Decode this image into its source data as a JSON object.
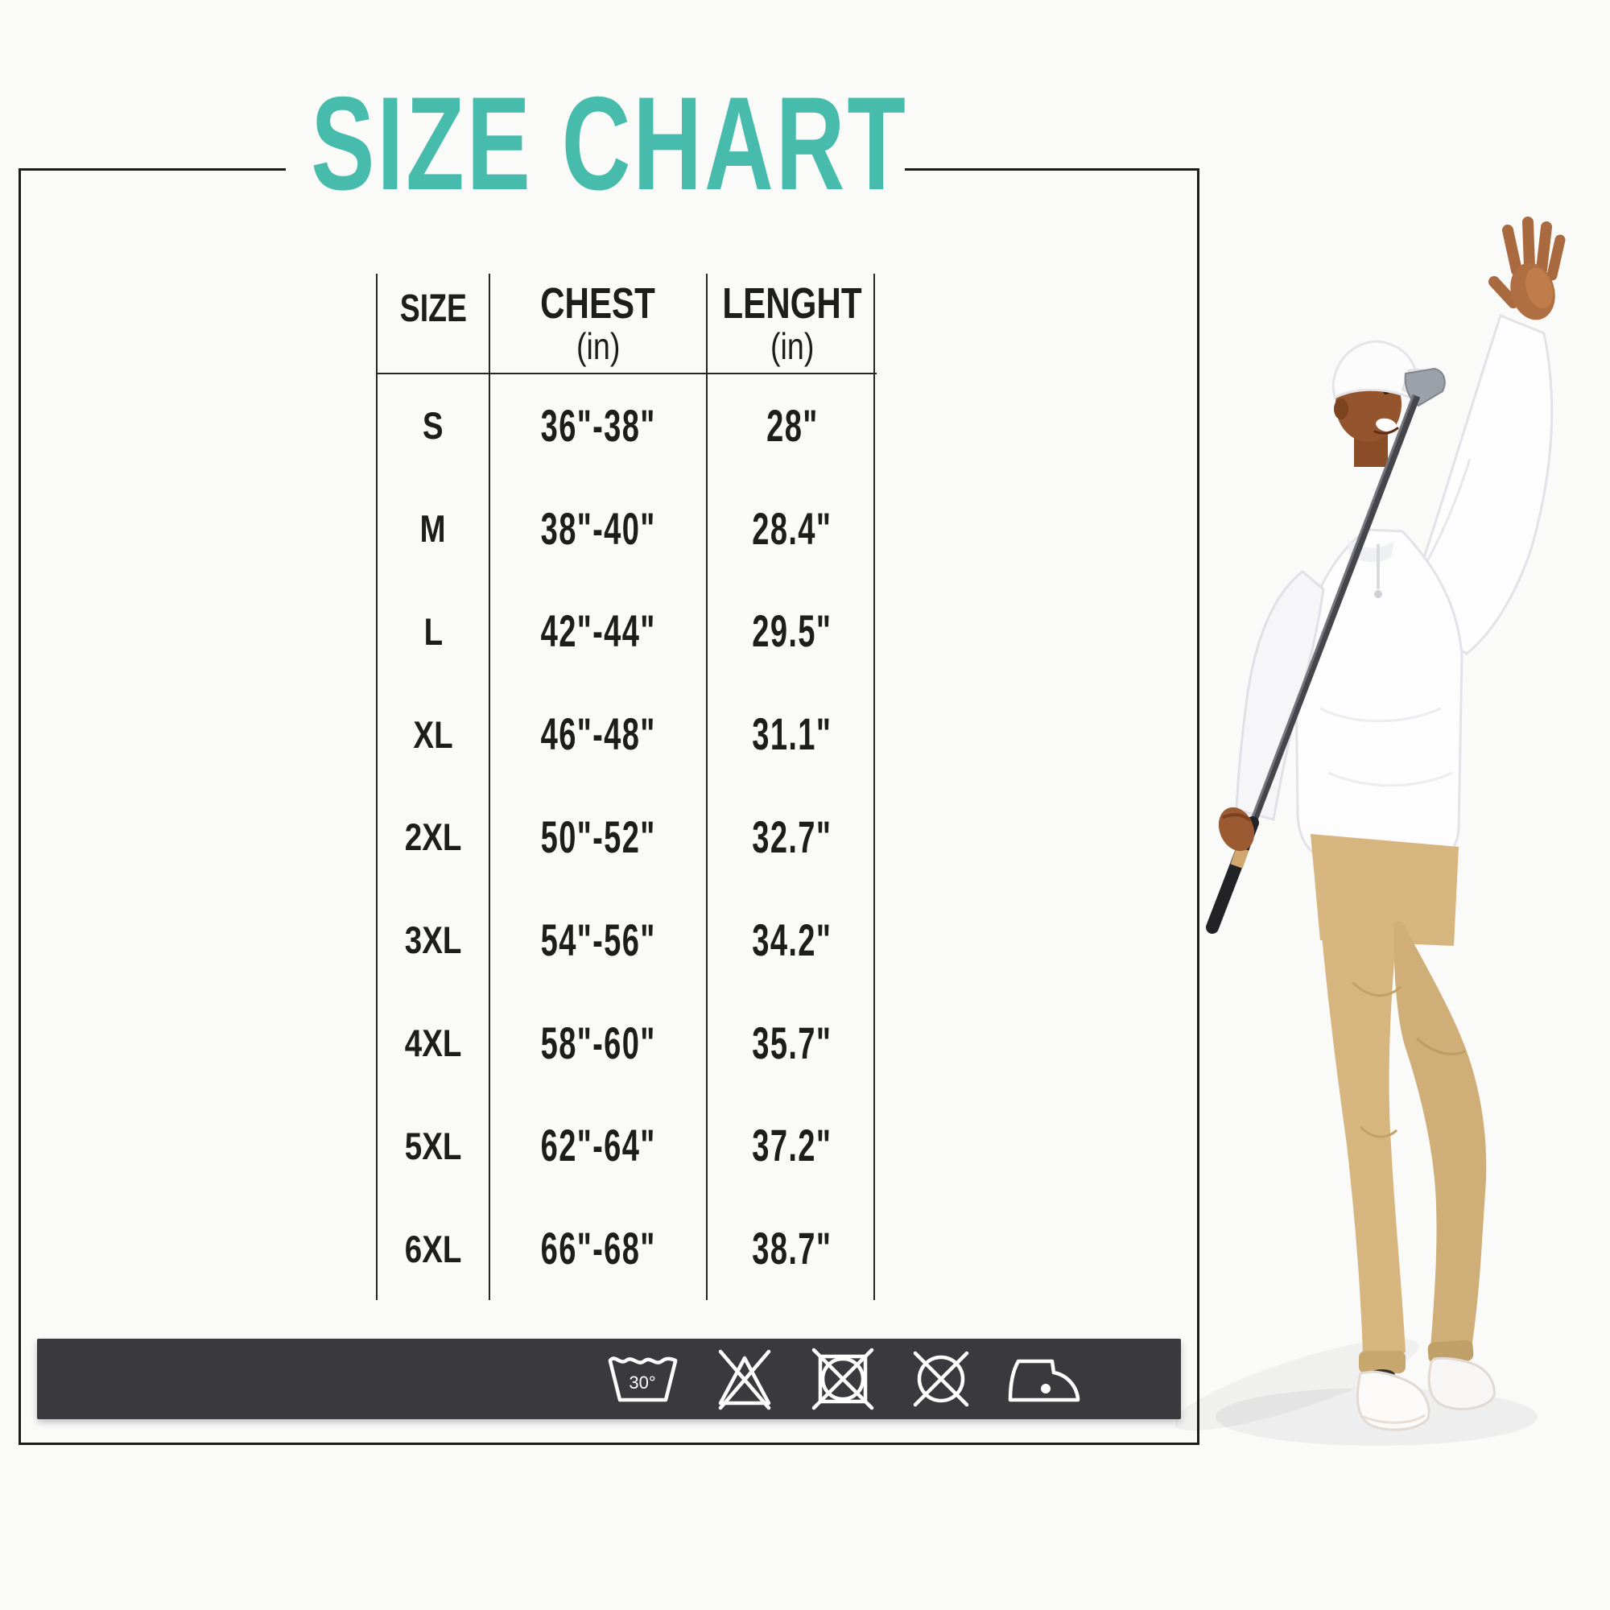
{
  "page": {
    "background": "#fafaf9",
    "frame_color": "#1b1b19"
  },
  "title": {
    "text": "SIZE CHART",
    "color": "#48bcac"
  },
  "table": {
    "headers": [
      {
        "label": "SIZE",
        "sub": ""
      },
      {
        "label": "CHEST",
        "sub": "(in)"
      },
      {
        "label": "LENGHT",
        "sub": "(in)"
      }
    ],
    "rows": [
      {
        "size": "S",
        "chest": "36\"-38\"",
        "length": "28\""
      },
      {
        "size": "M",
        "chest": "38\"-40\"",
        "length": "28.4\""
      },
      {
        "size": "L",
        "chest": "42\"-44\"",
        "length": "29.5\""
      },
      {
        "size": "XL",
        "chest": "46\"-48\"",
        "length": "31.1\""
      },
      {
        "size": "2XL",
        "chest": "50\"-52\"",
        "length": "32.7\""
      },
      {
        "size": "3XL",
        "chest": "54\"-56\"",
        "length": "34.2\""
      },
      {
        "size": "4XL",
        "chest": "58\"-60\"",
        "length": "35.7\""
      },
      {
        "size": "5XL",
        "chest": "62\"-64\"",
        "length": "37.2\""
      },
      {
        "size": "6XL",
        "chest": "66\"-68\"",
        "length": "38.7\""
      }
    ]
  },
  "care_bar": {
    "background": "#3a3a3e",
    "wash_temp_label": "30°",
    "icons": [
      "machine-wash-30",
      "do-not-bleach",
      "do-not-tumble-dry",
      "do-not-dry-clean",
      "iron-low-heat"
    ]
  },
  "chart_data": {
    "type": "table",
    "title": "SIZE CHART",
    "columns": [
      "SIZE",
      "CHEST (in)",
      "LENGHT (in)"
    ],
    "rows": [
      [
        "S",
        "36\"-38\"",
        "28\""
      ],
      [
        "M",
        "38\"-40\"",
        "28.4\""
      ],
      [
        "L",
        "42\"-44\"",
        "29.5\""
      ],
      [
        "XL",
        "46\"-48\"",
        "31.1\""
      ],
      [
        "2XL",
        "50\"-52\"",
        "32.7\""
      ],
      [
        "3XL",
        "54\"-56\"",
        "34.2\""
      ],
      [
        "4XL",
        "58\"-60\"",
        "35.7\""
      ],
      [
        "5XL",
        "62\"-64\"",
        "37.2\""
      ],
      [
        "6XL",
        "66\"-68\"",
        "38.7\""
      ]
    ]
  }
}
